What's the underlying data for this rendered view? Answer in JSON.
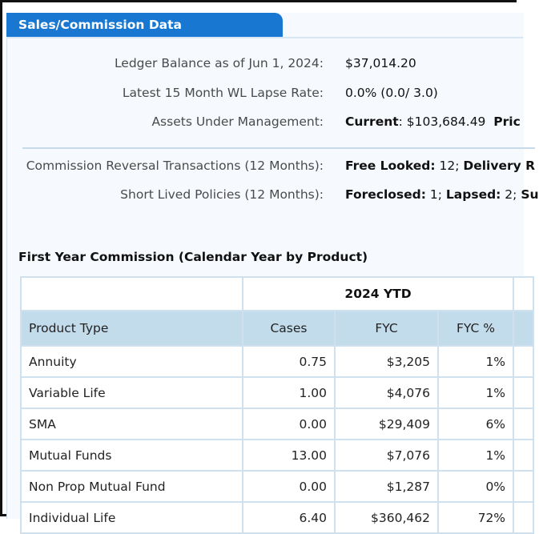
{
  "panel": {
    "title": "Sales/Commission Data"
  },
  "summary": [
    {
      "label": "Ledger Balance as of Jun 1, 2024:",
      "value_parts": [
        {
          "text": "$37,014.20",
          "bold": false
        }
      ]
    },
    {
      "label": "Latest 15 Month WL Lapse Rate:",
      "value_parts": [
        {
          "text": "0.0% (0.0/ 3.0)",
          "bold": false
        }
      ]
    },
    {
      "label": "Assets Under Management:",
      "value_parts": [
        {
          "text": "Current",
          "bold": true
        },
        {
          "text": ": $103,684.49  ",
          "bold": false
        },
        {
          "text": "Pric",
          "bold": true
        }
      ]
    }
  ],
  "summary2": [
    {
      "label": "Commission Reversal Transactions (12 Months):",
      "value_parts": [
        {
          "text": "Free Looked:",
          "bold": true
        },
        {
          "text": " 12; ",
          "bold": false
        },
        {
          "text": "Delivery R",
          "bold": true
        }
      ]
    },
    {
      "label": "Short Lived Policies (12 Months):",
      "value_parts": [
        {
          "text": "Foreclosed:",
          "bold": true
        },
        {
          "text": " 1; ",
          "bold": false
        },
        {
          "text": "Lapsed:",
          "bold": true
        },
        {
          "text": " 2; ",
          "bold": false
        },
        {
          "text": "Su",
          "bold": true
        }
      ]
    }
  ],
  "fyc_table": {
    "title": "First Year Commission (Calendar Year by Product)",
    "period": "2024 YTD",
    "columns": [
      "Product Type",
      "Cases",
      "FYC",
      "FYC %"
    ],
    "rows": [
      {
        "product": "Annuity",
        "cases": "0.75",
        "fyc": "$3,205",
        "pct": "1%"
      },
      {
        "product": "Variable Life",
        "cases": "1.00",
        "fyc": "$4,076",
        "pct": "1%"
      },
      {
        "product": "SMA",
        "cases": "0.00",
        "fyc": "$29,409",
        "pct": "6%"
      },
      {
        "product": "Mutual Funds",
        "cases": "13.00",
        "fyc": "$7,076",
        "pct": "1%"
      },
      {
        "product": "Non Prop Mutual Fund",
        "cases": "0.00",
        "fyc": "$1,287",
        "pct": "0%"
      },
      {
        "product": "Individual Life",
        "cases": "6.40",
        "fyc": "$360,462",
        "pct": "72%"
      }
    ]
  }
}
